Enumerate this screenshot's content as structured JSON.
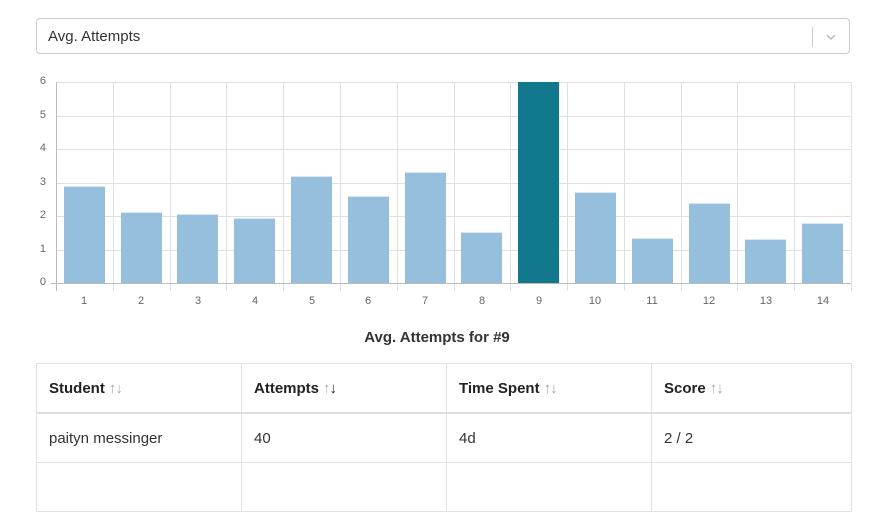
{
  "metric_select": {
    "value": "Avg. Attempts",
    "icon": "chevron-down-icon"
  },
  "chart_data": {
    "type": "bar",
    "title": "",
    "xlabel": "",
    "ylabel": "",
    "ylim": [
      0,
      6
    ],
    "yticks": [
      0,
      1,
      2,
      3,
      4,
      5,
      6
    ],
    "grid": true,
    "categories": [
      "1",
      "2",
      "3",
      "4",
      "5",
      "6",
      "7",
      "8",
      "9",
      "10",
      "11",
      "12",
      "13",
      "14"
    ],
    "values": [
      2.9,
      2.12,
      2.06,
      1.93,
      3.2,
      2.6,
      3.3,
      1.52,
      6.0,
      2.72,
      1.33,
      2.4,
      1.3,
      1.78
    ],
    "highlighted_index": 8,
    "colors": {
      "default": "#96bfde",
      "highlighted": "#12788e"
    }
  },
  "detail": {
    "caption": "Avg. Attempts for #9",
    "columns": [
      {
        "label": "Student",
        "sort": "none"
      },
      {
        "label": "Attempts",
        "sort": "desc"
      },
      {
        "label": "Time Spent",
        "sort": "none"
      },
      {
        "label": "Score",
        "sort": "none"
      }
    ],
    "rows": [
      {
        "student": "paityn messinger",
        "attempts": "40",
        "time_spent": "4d",
        "score": "2 / 2"
      }
    ]
  }
}
